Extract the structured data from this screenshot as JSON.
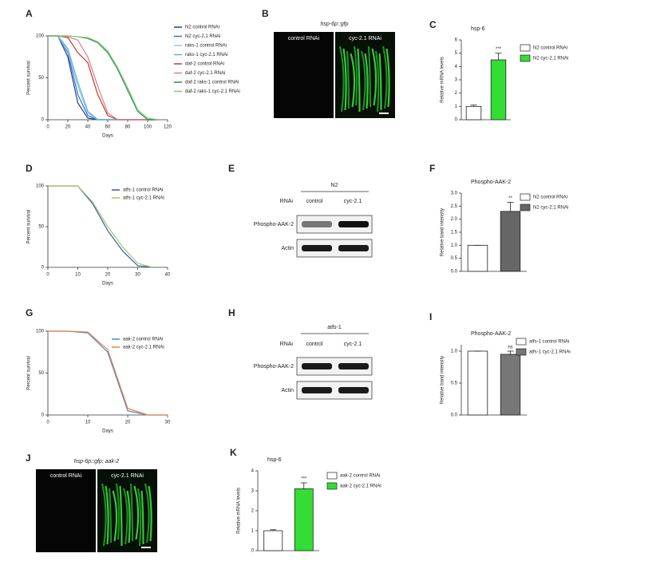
{
  "chart_data": [
    {
      "type": "line",
      "label": "A",
      "xlabel": "Days",
      "ylabel": "Percent survival",
      "x": [
        0,
        10,
        20,
        30,
        40,
        50,
        60,
        70,
        80,
        90,
        100,
        110
      ],
      "xlim": [
        0,
        120
      ],
      "ylim": [
        0,
        100
      ],
      "xticks": [
        0,
        20,
        40,
        60,
        80,
        100,
        120
      ],
      "yticks": [
        0,
        50,
        100
      ],
      "series": [
        {
          "name": "N2 control RNAi",
          "color": "#1f3f8f",
          "values": [
            100,
            100,
            75,
            20,
            2,
            0,
            0,
            0,
            0,
            0,
            0,
            0
          ]
        },
        {
          "name": "N2 cyc-2.1 RNAi",
          "color": "#3a6fd0",
          "values": [
            100,
            100,
            80,
            30,
            5,
            0,
            0,
            0,
            0,
            0,
            0,
            0
          ]
        },
        {
          "name": "raks-1 control RNAi",
          "color": "#8ecae6",
          "values": [
            100,
            100,
            82,
            40,
            8,
            0,
            0,
            0,
            0,
            0,
            0,
            0
          ]
        },
        {
          "name": "raks-1 cyc-2.1 RNAi",
          "color": "#5fb0d9",
          "values": [
            100,
            100,
            85,
            45,
            10,
            0,
            0,
            0,
            0,
            0,
            0,
            0
          ]
        },
        {
          "name": "daf-2 control RNAi",
          "color": "#c0392b",
          "values": [
            100,
            100,
            98,
            80,
            68,
            30,
            5,
            0,
            0,
            0,
            0,
            0
          ]
        },
        {
          "name": "daf-2 cyc-2.1 RNAi",
          "color": "#e07a8a",
          "values": [
            100,
            100,
            99,
            95,
            75,
            40,
            8,
            0,
            0,
            0,
            0,
            0
          ]
        },
        {
          "name": "daf-2 raks-1 control RNAi",
          "color": "#2e8b57",
          "values": [
            100,
            100,
            100,
            99,
            97,
            92,
            80,
            60,
            35,
            10,
            0,
            0
          ]
        },
        {
          "name": "daf-2 raks-1 cyc-2.1 RNAi",
          "color": "#7fcf6f",
          "values": [
            100,
            100,
            100,
            99,
            98,
            93,
            82,
            62,
            38,
            12,
            2,
            0
          ]
        }
      ]
    },
    {
      "type": "bar",
      "label": "C",
      "title": "hsp-6",
      "ylabel": "Relative mRNA levels",
      "categories": [
        "N2 control RNAi",
        "N2 cyc-2.1 RNAi"
      ],
      "values": [
        1,
        4.5
      ],
      "errors": [
        0.1,
        0.5
      ],
      "colors": [
        "#ffffff",
        "#33dd33"
      ],
      "ylim": [
        0,
        6
      ],
      "yticks": [
        0,
        1,
        2,
        3,
        4,
        5,
        6
      ],
      "annotation": "***"
    },
    {
      "type": "line",
      "label": "D",
      "xlabel": "Days",
      "ylabel": "Percent survival",
      "x": [
        0,
        5,
        10,
        15,
        20,
        25,
        30,
        35
      ],
      "xlim": [
        0,
        40
      ],
      "ylim": [
        0,
        100
      ],
      "xticks": [
        0,
        10,
        20,
        30,
        40
      ],
      "yticks": [
        0,
        50,
        100
      ],
      "series": [
        {
          "name": "atfs-1 control RNAi",
          "color": "#3b5ba9",
          "values": [
            100,
            100,
            100,
            78,
            45,
            20,
            2,
            0
          ]
        },
        {
          "name": "atfs-1 cyc-2.1 RNAi",
          "color": "#a3c96a",
          "values": [
            100,
            100,
            100,
            80,
            50,
            25,
            5,
            0
          ]
        }
      ]
    },
    {
      "type": "bar",
      "label": "F",
      "title": "Phospho-AAK-2",
      "ylabel": "Relative band intensity",
      "categories": [
        "N2 control RNAi",
        "N2 cyc-2.1 RNAi"
      ],
      "values": [
        1,
        2.3
      ],
      "errors": [
        0,
        0.35
      ],
      "colors": [
        "#ffffff",
        "#666666"
      ],
      "ylim": [
        0,
        3
      ],
      "yticks": [
        {
          "value": 0,
          "label": "0.0"
        },
        {
          "value": 0.5,
          "label": "0.5"
        },
        {
          "value": 1,
          "label": "1.0"
        },
        {
          "value": 1.5,
          "label": "1.5"
        },
        {
          "value": 2,
          "label": "2.0"
        },
        {
          "value": 2.5,
          "label": "2.5"
        },
        {
          "value": 3,
          "label": "3.0"
        }
      ],
      "annotation": "**"
    },
    {
      "type": "line",
      "label": "G",
      "xlabel": "Days",
      "ylabel": "Percent survival",
      "x": [
        0,
        5,
        10,
        15,
        20,
        25,
        30
      ],
      "xlim": [
        0,
        30
      ],
      "ylim": [
        0,
        100
      ],
      "xticks": [
        0,
        10,
        20,
        30
      ],
      "yticks": [
        0,
        50,
        100
      ],
      "series": [
        {
          "name": "aak-2 control RNAi",
          "color": "#5b7fc7",
          "values": [
            100,
            100,
            98,
            75,
            5,
            0,
            0
          ]
        },
        {
          "name": "aak-2 cyc-2.1 RNAi",
          "color": "#e0884a",
          "values": [
            100,
            100,
            99,
            78,
            8,
            0,
            0
          ]
        }
      ]
    },
    {
      "type": "bar",
      "label": "I",
      "title": "Phospho-AAK-2",
      "ylabel": "Relative band intensity",
      "categories": [
        "atfs-1 control RNAi",
        "atfs-1 cyc-2.1 RNAi"
      ],
      "values": [
        1,
        0.95
      ],
      "errors": [
        0,
        0.05
      ],
      "colors": [
        "#ffffff",
        "#777777"
      ],
      "ylim": [
        0,
        1.1
      ],
      "yticks": [
        {
          "value": 0,
          "label": "0.0"
        },
        {
          "value": 0.5,
          "label": "0.5"
        },
        {
          "value": 1,
          "label": "1.0"
        }
      ],
      "annotation": "ns"
    },
    {
      "type": "bar",
      "label": "K",
      "title": "hsp-6",
      "ylabel": "Relative mRNA levels",
      "categories": [
        "aak-2 control RNAi",
        "aak-2 cyc-2.1 RNAi"
      ],
      "values": [
        1,
        3.1
      ],
      "errors": [
        0.05,
        0.3
      ],
      "colors": [
        "#ffffff",
        "#33dd33"
      ],
      "ylim": [
        0,
        4
      ],
      "yticks": [
        0,
        1,
        2,
        3,
        4
      ],
      "annotation": "***"
    }
  ],
  "images": [
    {
      "label": "B",
      "title": "hsp-6p::gfp",
      "left": "control RNAi",
      "right": "cyc-2.1 RNAi"
    },
    {
      "label": "J",
      "title": "hsp-6p::gfp; aak-2",
      "left": "control RNAi",
      "right": "cyc-2.1 RNAi"
    }
  ],
  "blots": [
    {
      "label": "E",
      "strain": "N2",
      "rnai": "RNAi",
      "lanes": [
        "control",
        "cyc-2.1"
      ],
      "rows": [
        "Phospho-AAK-2",
        "Actin"
      ]
    },
    {
      "label": "H",
      "strain": "atfs-1",
      "rnai": "RNAi",
      "lanes": [
        "control",
        "cyc-2.1"
      ],
      "rows": [
        "Phospho-AAK-2",
        "Actin"
      ]
    }
  ]
}
